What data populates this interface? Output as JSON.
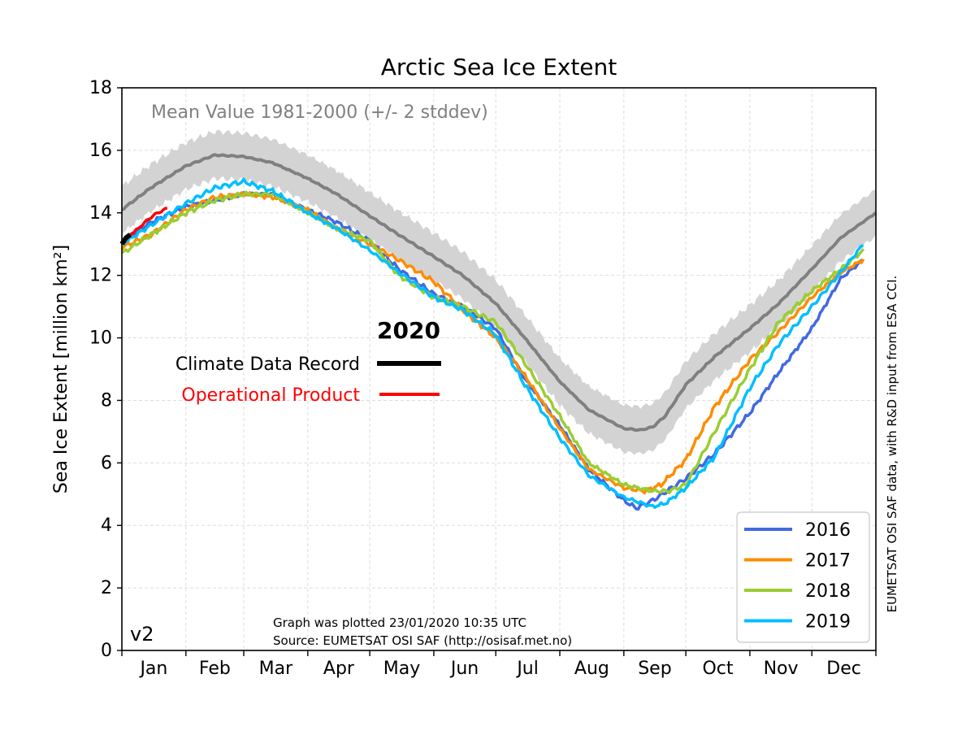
{
  "chart_data": {
    "type": "line",
    "title": "Arctic Sea Ice Extent",
    "ylabel": "Sea Ice Extent [million km²]",
    "xlabel": "",
    "ylim": [
      0,
      18
    ],
    "xlim": [
      1,
      366
    ],
    "yticks": [
      0,
      2,
      4,
      6,
      8,
      10,
      12,
      14,
      16,
      18
    ],
    "month_labels": [
      "Jan",
      "Feb",
      "Mar",
      "Apr",
      "May",
      "Jun",
      "Jul",
      "Aug",
      "Sep",
      "Oct",
      "Nov",
      "Dec"
    ],
    "grid": true,
    "mean_label": "Mean Value 1981-2000 (+/- 2 stddev)",
    "mean": {
      "x": [
        1,
        15,
        32,
        46,
        60,
        74,
        91,
        105,
        121,
        135,
        152,
        166,
        182,
        196,
        213,
        227,
        244,
        252,
        258,
        264,
        274,
        288,
        305,
        319,
        335,
        349,
        366
      ],
      "values": [
        14.1,
        14.8,
        15.5,
        15.85,
        15.8,
        15.6,
        15.1,
        14.6,
        13.9,
        13.3,
        12.6,
        12.0,
        11.1,
        10.0,
        8.6,
        7.7,
        7.1,
        7.05,
        7.15,
        7.5,
        8.5,
        9.4,
        10.3,
        11.1,
        12.2,
        13.2,
        14.0
      ],
      "band": 0.75,
      "color": "#808080",
      "band_color": "#d3d3d3"
    },
    "series": [
      {
        "name": "2016",
        "color": "#4169e1",
        "x": [
          1,
          15,
          32,
          46,
          60,
          74,
          91,
          105,
          121,
          135,
          152,
          166,
          182,
          196,
          213,
          227,
          244,
          250,
          258,
          274,
          288,
          305,
          319,
          335,
          349,
          360
        ],
        "values": [
          13.1,
          13.7,
          14.2,
          14.4,
          14.6,
          14.6,
          14.1,
          13.7,
          13.1,
          12.2,
          11.4,
          11.0,
          10.3,
          8.7,
          7.2,
          5.8,
          4.8,
          4.55,
          4.8,
          5.5,
          6.3,
          7.6,
          8.9,
          10.3,
          11.9,
          12.5
        ]
      },
      {
        "name": "2017",
        "color": "#ff8c00",
        "x": [
          1,
          15,
          32,
          46,
          60,
          74,
          91,
          105,
          121,
          135,
          152,
          166,
          182,
          196,
          213,
          227,
          244,
          254,
          262,
          274,
          288,
          305,
          319,
          335,
          349,
          360
        ],
        "values": [
          12.9,
          13.3,
          14.1,
          14.5,
          14.6,
          14.5,
          14.1,
          13.5,
          13.0,
          12.5,
          11.8,
          10.9,
          10.0,
          8.8,
          7.1,
          5.8,
          5.2,
          5.1,
          5.3,
          6.1,
          7.8,
          9.3,
          10.2,
          11.3,
          12.1,
          12.5
        ]
      },
      {
        "name": "2018",
        "color": "#9acd32",
        "x": [
          1,
          15,
          32,
          46,
          60,
          74,
          91,
          105,
          121,
          135,
          152,
          166,
          182,
          196,
          213,
          227,
          244,
          258,
          266,
          274,
          288,
          305,
          319,
          335,
          349,
          360
        ],
        "values": [
          12.7,
          13.3,
          14.0,
          14.4,
          14.6,
          14.6,
          14.0,
          13.5,
          13.1,
          12.0,
          11.3,
          11.0,
          10.5,
          9.2,
          7.5,
          6.0,
          5.3,
          5.1,
          5.1,
          5.3,
          7.0,
          9.0,
          10.5,
          11.5,
          12.2,
          12.8
        ]
      },
      {
        "name": "2019",
        "color": "#00bfff",
        "x": [
          1,
          15,
          32,
          46,
          60,
          74,
          91,
          105,
          121,
          135,
          152,
          166,
          182,
          196,
          213,
          227,
          244,
          258,
          264,
          274,
          288,
          305,
          319,
          335,
          349,
          360
        ],
        "values": [
          13.0,
          13.6,
          14.3,
          14.8,
          15.0,
          14.7,
          14.0,
          13.5,
          12.8,
          12.1,
          11.3,
          10.9,
          10.1,
          8.5,
          6.8,
          5.6,
          4.9,
          4.6,
          4.7,
          5.2,
          6.2,
          8.4,
          9.8,
          11.0,
          12.1,
          13.0
        ]
      }
    ],
    "current_year": {
      "title": "2020",
      "cdr_label": "Climate Data Record",
      "cdr_color": "#000000",
      "cdr": {
        "x": [
          1,
          2,
          3,
          4,
          5
        ],
        "values": [
          13.0,
          13.1,
          13.2,
          13.25,
          13.3
        ]
      },
      "op_label": "Operational Product",
      "op_color": "#ff0000",
      "op": {
        "x": [
          1,
          5,
          9,
          13,
          17,
          20,
          23
        ],
        "values": [
          13.1,
          13.3,
          13.5,
          13.75,
          13.95,
          14.05,
          14.15
        ]
      }
    },
    "legend_placement": "bottom-right",
    "plotted_note": "Graph was plotted 23/01/2020 10:35 UTC",
    "source_note": "Source: EUMETSAT OSI SAF (http://osisaf.met.no)",
    "version": "v2",
    "side_note": "EUMETSAT OSI SAF data, with R&D input from ESA CCI."
  }
}
